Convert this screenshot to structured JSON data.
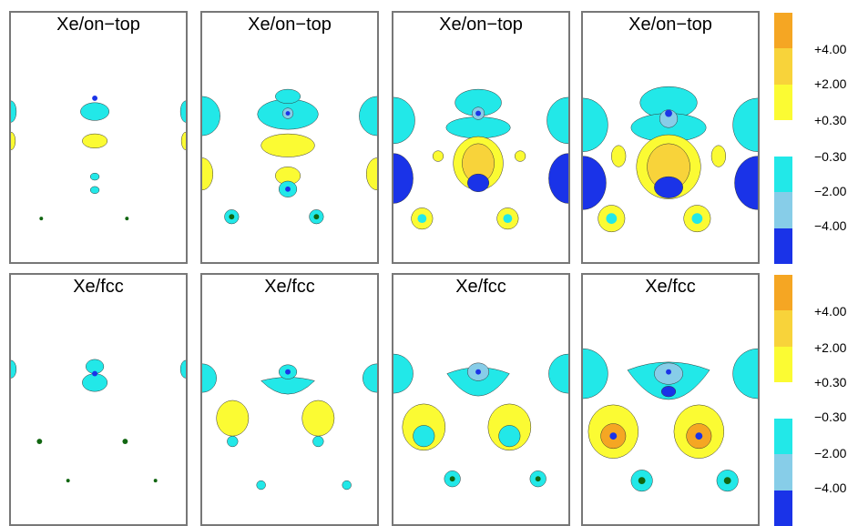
{
  "rows": [
    {
      "titles": [
        "Xe/on−top",
        "Xe/on−top",
        "Xe/on−top",
        "Xe/on−top"
      ]
    },
    {
      "titles": [
        "Xe/fcc",
        "Xe/fcc",
        "Xe/fcc",
        "Xe/fcc"
      ]
    }
  ],
  "colorbar": {
    "labels": [
      "+4.00",
      "+2.00",
      "+0.30",
      "−0.30",
      "−2.00",
      "−4.00"
    ],
    "colors": [
      "#f5a623",
      "#f8d33a",
      "#fbfb33",
      "#ffffff",
      "#22e8e8",
      "#87cde8",
      "#1a33e8"
    ]
  }
}
